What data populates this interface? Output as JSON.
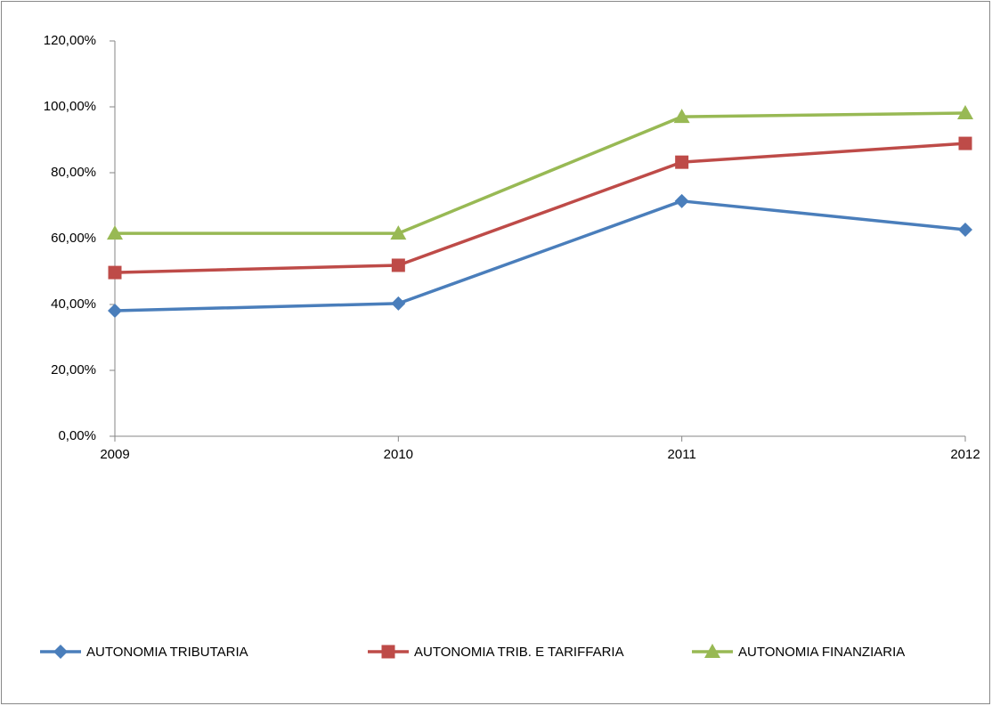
{
  "chart_data": {
    "type": "line",
    "categories": [
      "2009",
      "2010",
      "2011",
      "2012"
    ],
    "series": [
      {
        "name": "AUTONOMIA TRIBUTARIA",
        "color": "#4a7ebb",
        "marker": "diamond",
        "values": [
          38.1,
          40.3,
          71.4,
          62.7
        ]
      },
      {
        "name": "AUTONOMIA TRIB. E TARIFFARIA",
        "color": "#be4b48",
        "marker": "square",
        "values": [
          49.7,
          51.9,
          83.2,
          88.9
        ]
      },
      {
        "name": "AUTONOMIA FINANZIARIA",
        "color": "#98b954",
        "marker": "triangle",
        "values": [
          61.6,
          61.6,
          97.0,
          98.1
        ]
      }
    ],
    "ylim": [
      0,
      120
    ],
    "yticks": [
      {
        "value": 0,
        "label": "0,00%"
      },
      {
        "value": 20,
        "label": "20,00%"
      },
      {
        "value": 40,
        "label": "40,00%"
      },
      {
        "value": 60,
        "label": "60,00%"
      },
      {
        "value": 80,
        "label": "80,00%"
      },
      {
        "value": 100,
        "label": "100,00%"
      },
      {
        "value": 120,
        "label": "120,00%"
      }
    ],
    "grid": false,
    "legend": "bottom"
  }
}
